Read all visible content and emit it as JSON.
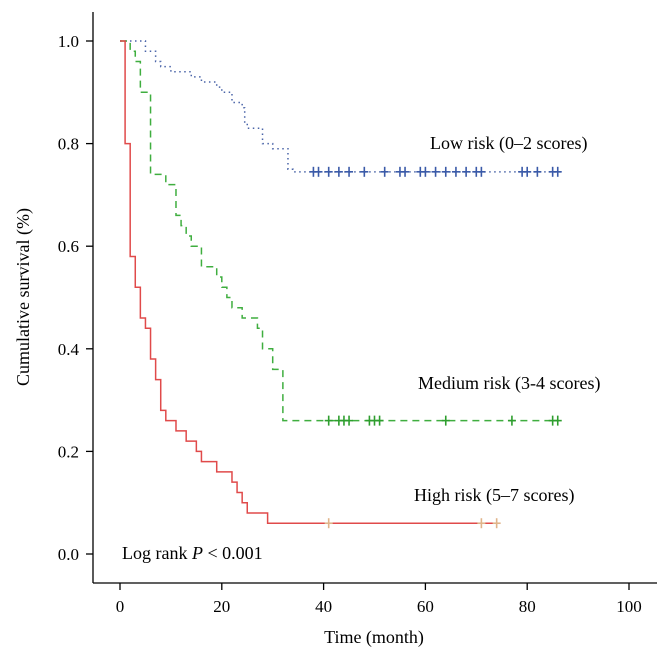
{
  "chart_data": {
    "type": "line",
    "subtype": "kaplan-meier",
    "xlabel": "Time (month)",
    "ylabel": "Cumulative survival (%)",
    "xlim": [
      -5,
      105
    ],
    "ylim": [
      -0.07,
      1.05
    ],
    "x_ticks": [
      0,
      20,
      40,
      60,
      80,
      100
    ],
    "y_ticks": [
      0.0,
      0.2,
      0.4,
      0.6,
      0.8,
      1.0
    ],
    "x_tick_labels": [
      "0",
      "20",
      "40",
      "60",
      "80",
      "100"
    ],
    "y_tick_labels": [
      "0.0",
      "0.2",
      "0.4",
      "0.6",
      "0.8",
      "1.0"
    ],
    "annotation": {
      "prefix": "Log rank ",
      "italic": "P",
      "suffix": " < 0.001"
    },
    "series": [
      {
        "name": "Low risk (0–2 scores)",
        "color": "#4a64a8",
        "censor_color": "#3a5aa8",
        "dash": "dotted",
        "steps": [
          [
            0,
            1.0
          ],
          [
            5,
            0.98
          ],
          [
            7,
            0.96
          ],
          [
            8,
            0.95
          ],
          [
            10,
            0.94
          ],
          [
            14,
            0.93
          ],
          [
            16,
            0.92
          ],
          [
            19,
            0.91
          ],
          [
            20,
            0.9
          ],
          [
            22,
            0.88
          ],
          [
            24,
            0.87
          ],
          [
            24.5,
            0.84
          ],
          [
            25,
            0.83
          ],
          [
            28,
            0.8
          ],
          [
            30,
            0.79
          ],
          [
            33,
            0.75
          ],
          [
            34,
            0.745
          ],
          [
            87,
            0.745
          ]
        ],
        "censors": [
          38,
          39,
          41,
          43,
          45,
          48,
          52,
          55,
          56,
          59,
          60,
          62,
          64,
          66,
          68,
          70,
          71,
          79,
          80,
          82,
          85,
          86
        ],
        "censor_y": 0.745
      },
      {
        "name": "Medium risk (3-4 scores)",
        "color": "#3fae3f",
        "censor_color": "#2e9e2e",
        "dash": "dashed",
        "steps": [
          [
            0,
            1.0
          ],
          [
            2,
            0.98
          ],
          [
            3,
            0.96
          ],
          [
            4,
            0.9
          ],
          [
            6,
            0.74
          ],
          [
            9,
            0.72
          ],
          [
            11,
            0.66
          ],
          [
            12,
            0.64
          ],
          [
            13,
            0.62
          ],
          [
            14,
            0.6
          ],
          [
            16,
            0.56
          ],
          [
            19,
            0.54
          ],
          [
            20,
            0.52
          ],
          [
            21,
            0.5
          ],
          [
            22,
            0.48
          ],
          [
            24,
            0.46
          ],
          [
            27,
            0.44
          ],
          [
            28,
            0.4
          ],
          [
            30,
            0.36
          ],
          [
            32,
            0.26
          ],
          [
            86,
            0.26
          ]
        ],
        "censors": [
          41,
          43,
          44,
          45,
          49,
          50,
          51,
          64,
          77,
          85,
          86
        ],
        "censor_y": 0.26
      },
      {
        "name": "High risk (5–7 scores)",
        "color": "#e04a4a",
        "censor_color": "#e0b48a",
        "dash": "solid",
        "steps": [
          [
            0,
            1.0
          ],
          [
            1,
            0.8
          ],
          [
            2,
            0.58
          ],
          [
            3,
            0.52
          ],
          [
            4,
            0.46
          ],
          [
            5,
            0.44
          ],
          [
            6,
            0.38
          ],
          [
            7,
            0.34
          ],
          [
            8,
            0.28
          ],
          [
            9,
            0.26
          ],
          [
            11,
            0.24
          ],
          [
            13,
            0.22
          ],
          [
            15,
            0.2
          ],
          [
            16,
            0.18
          ],
          [
            19,
            0.16
          ],
          [
            22,
            0.14
          ],
          [
            23,
            0.12
          ],
          [
            24,
            0.1
          ],
          [
            25,
            0.08
          ],
          [
            29,
            0.06
          ],
          [
            74,
            0.06
          ]
        ],
        "censors": [
          41,
          71,
          74
        ],
        "censor_y": 0.06
      }
    ]
  }
}
